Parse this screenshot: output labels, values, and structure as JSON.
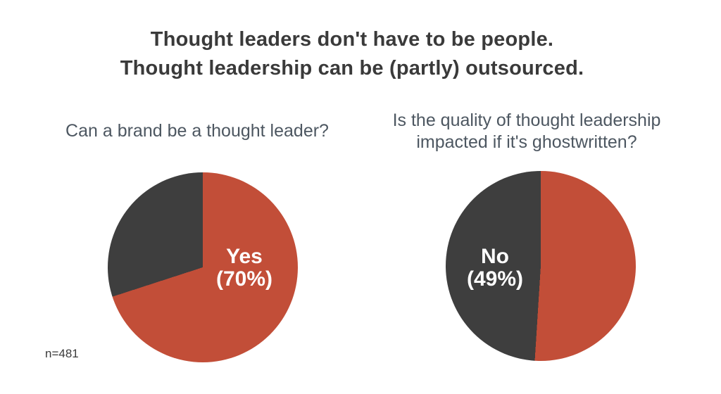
{
  "title": {
    "line1": "Thought leaders don't have to be people.",
    "line2": "Thought leadership can be (partly) outsourced."
  },
  "footnote": "n=481",
  "colors": {
    "accent_orange": "#c24e38",
    "accent_charcoal": "#3e3e3e",
    "title_text": "#3a3a3a",
    "question_text": "#4d5761",
    "pie_label_text": "#ffffff",
    "background": "#ffffff"
  },
  "chart_data": [
    {
      "type": "pie",
      "title": "Can a brand be a thought leader?",
      "start_angle_deg": 0,
      "direction": "clockwise",
      "legend": "none",
      "slices": [
        {
          "label": "Yes",
          "value": 70,
          "color": "#c24e38"
        },
        {
          "label": "",
          "value": 30,
          "color": "#3e3e3e"
        }
      ],
      "label": {
        "line1": "Yes",
        "line2": "(70%)"
      }
    },
    {
      "type": "pie",
      "title": "Is the quality of thought leadership impacted if it's ghostwritten?",
      "start_angle_deg": 0,
      "direction": "clockwise",
      "legend": "none",
      "slices": [
        {
          "label": "",
          "value": 51,
          "color": "#c24e38"
        },
        {
          "label": "No",
          "value": 49,
          "color": "#3e3e3e"
        }
      ],
      "label": {
        "line1": "No",
        "line2": "(49%)"
      }
    }
  ]
}
